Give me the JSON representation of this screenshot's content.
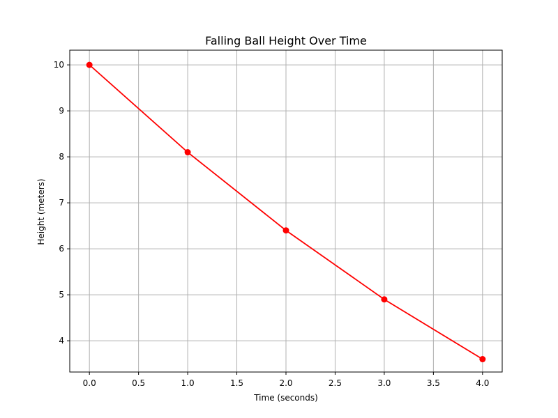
{
  "chart_data": {
    "type": "line",
    "title": "Falling Ball Height Over Time",
    "xlabel": "Time (seconds)",
    "ylabel": "Height (meters)",
    "x": [
      0.0,
      1.0,
      2.0,
      3.0,
      4.0
    ],
    "series": [
      {
        "values": [
          10.0,
          8.1,
          6.4,
          4.9,
          3.6
        ],
        "color": "#ff0000",
        "marker": "circle"
      }
    ],
    "xlim": [
      -0.2,
      4.2
    ],
    "ylim": [
      3.32,
      10.32
    ],
    "x_ticks": [
      0.0,
      0.5,
      1.0,
      1.5,
      2.0,
      2.5,
      3.0,
      3.5,
      4.0
    ],
    "x_tick_labels": [
      "0.0",
      "0.5",
      "1.0",
      "1.5",
      "2.0",
      "2.5",
      "3.0",
      "3.5",
      "4.0"
    ],
    "y_ticks": [
      4,
      5,
      6,
      7,
      8,
      9,
      10
    ],
    "y_tick_labels": [
      "4",
      "5",
      "6",
      "7",
      "8",
      "9",
      "10"
    ],
    "grid": true,
    "legend": "none"
  }
}
